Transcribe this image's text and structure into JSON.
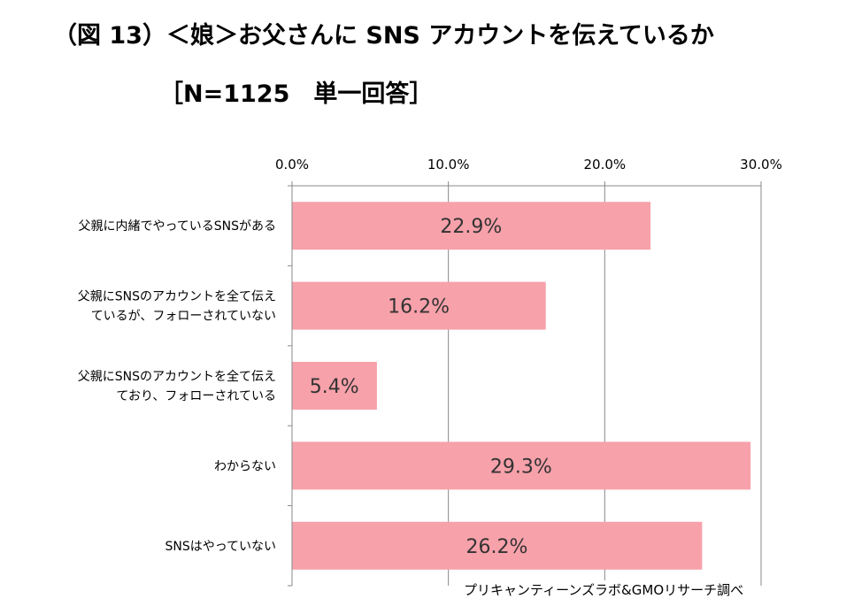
{
  "title": "（図 13）＜娘＞お父さんに SNS アカウントを伝えているか",
  "subtitle": "［N=1125　単一回答］",
  "source": "プリキャンティーンズラボ&GMOリサーチ調べ",
  "chart_data": {
    "type": "bar",
    "orientation": "horizontal",
    "categories": [
      [
        "父親に内緒でやっているSNSがある"
      ],
      [
        "父親にSNSのアカウントを全て伝え",
        "ているが、フォローされていない"
      ],
      [
        "父親にSNSのアカウントを全て伝え",
        "ており、フォローされている"
      ],
      [
        "わからない"
      ],
      [
        "SNSはやっていない"
      ]
    ],
    "values": [
      22.9,
      16.2,
      5.4,
      29.3,
      26.2
    ],
    "value_labels": [
      "22.9%",
      "16.2%",
      "5.4%",
      "29.3%",
      "26.2%"
    ],
    "xlim": [
      0,
      30
    ],
    "ticks": [
      0,
      10,
      20,
      30
    ],
    "tick_labels": [
      "0.0%",
      "10.0%",
      "20.0%",
      "30.0%"
    ],
    "axis_position": "top",
    "grid": true,
    "bar_color": "#f7a1aa"
  }
}
